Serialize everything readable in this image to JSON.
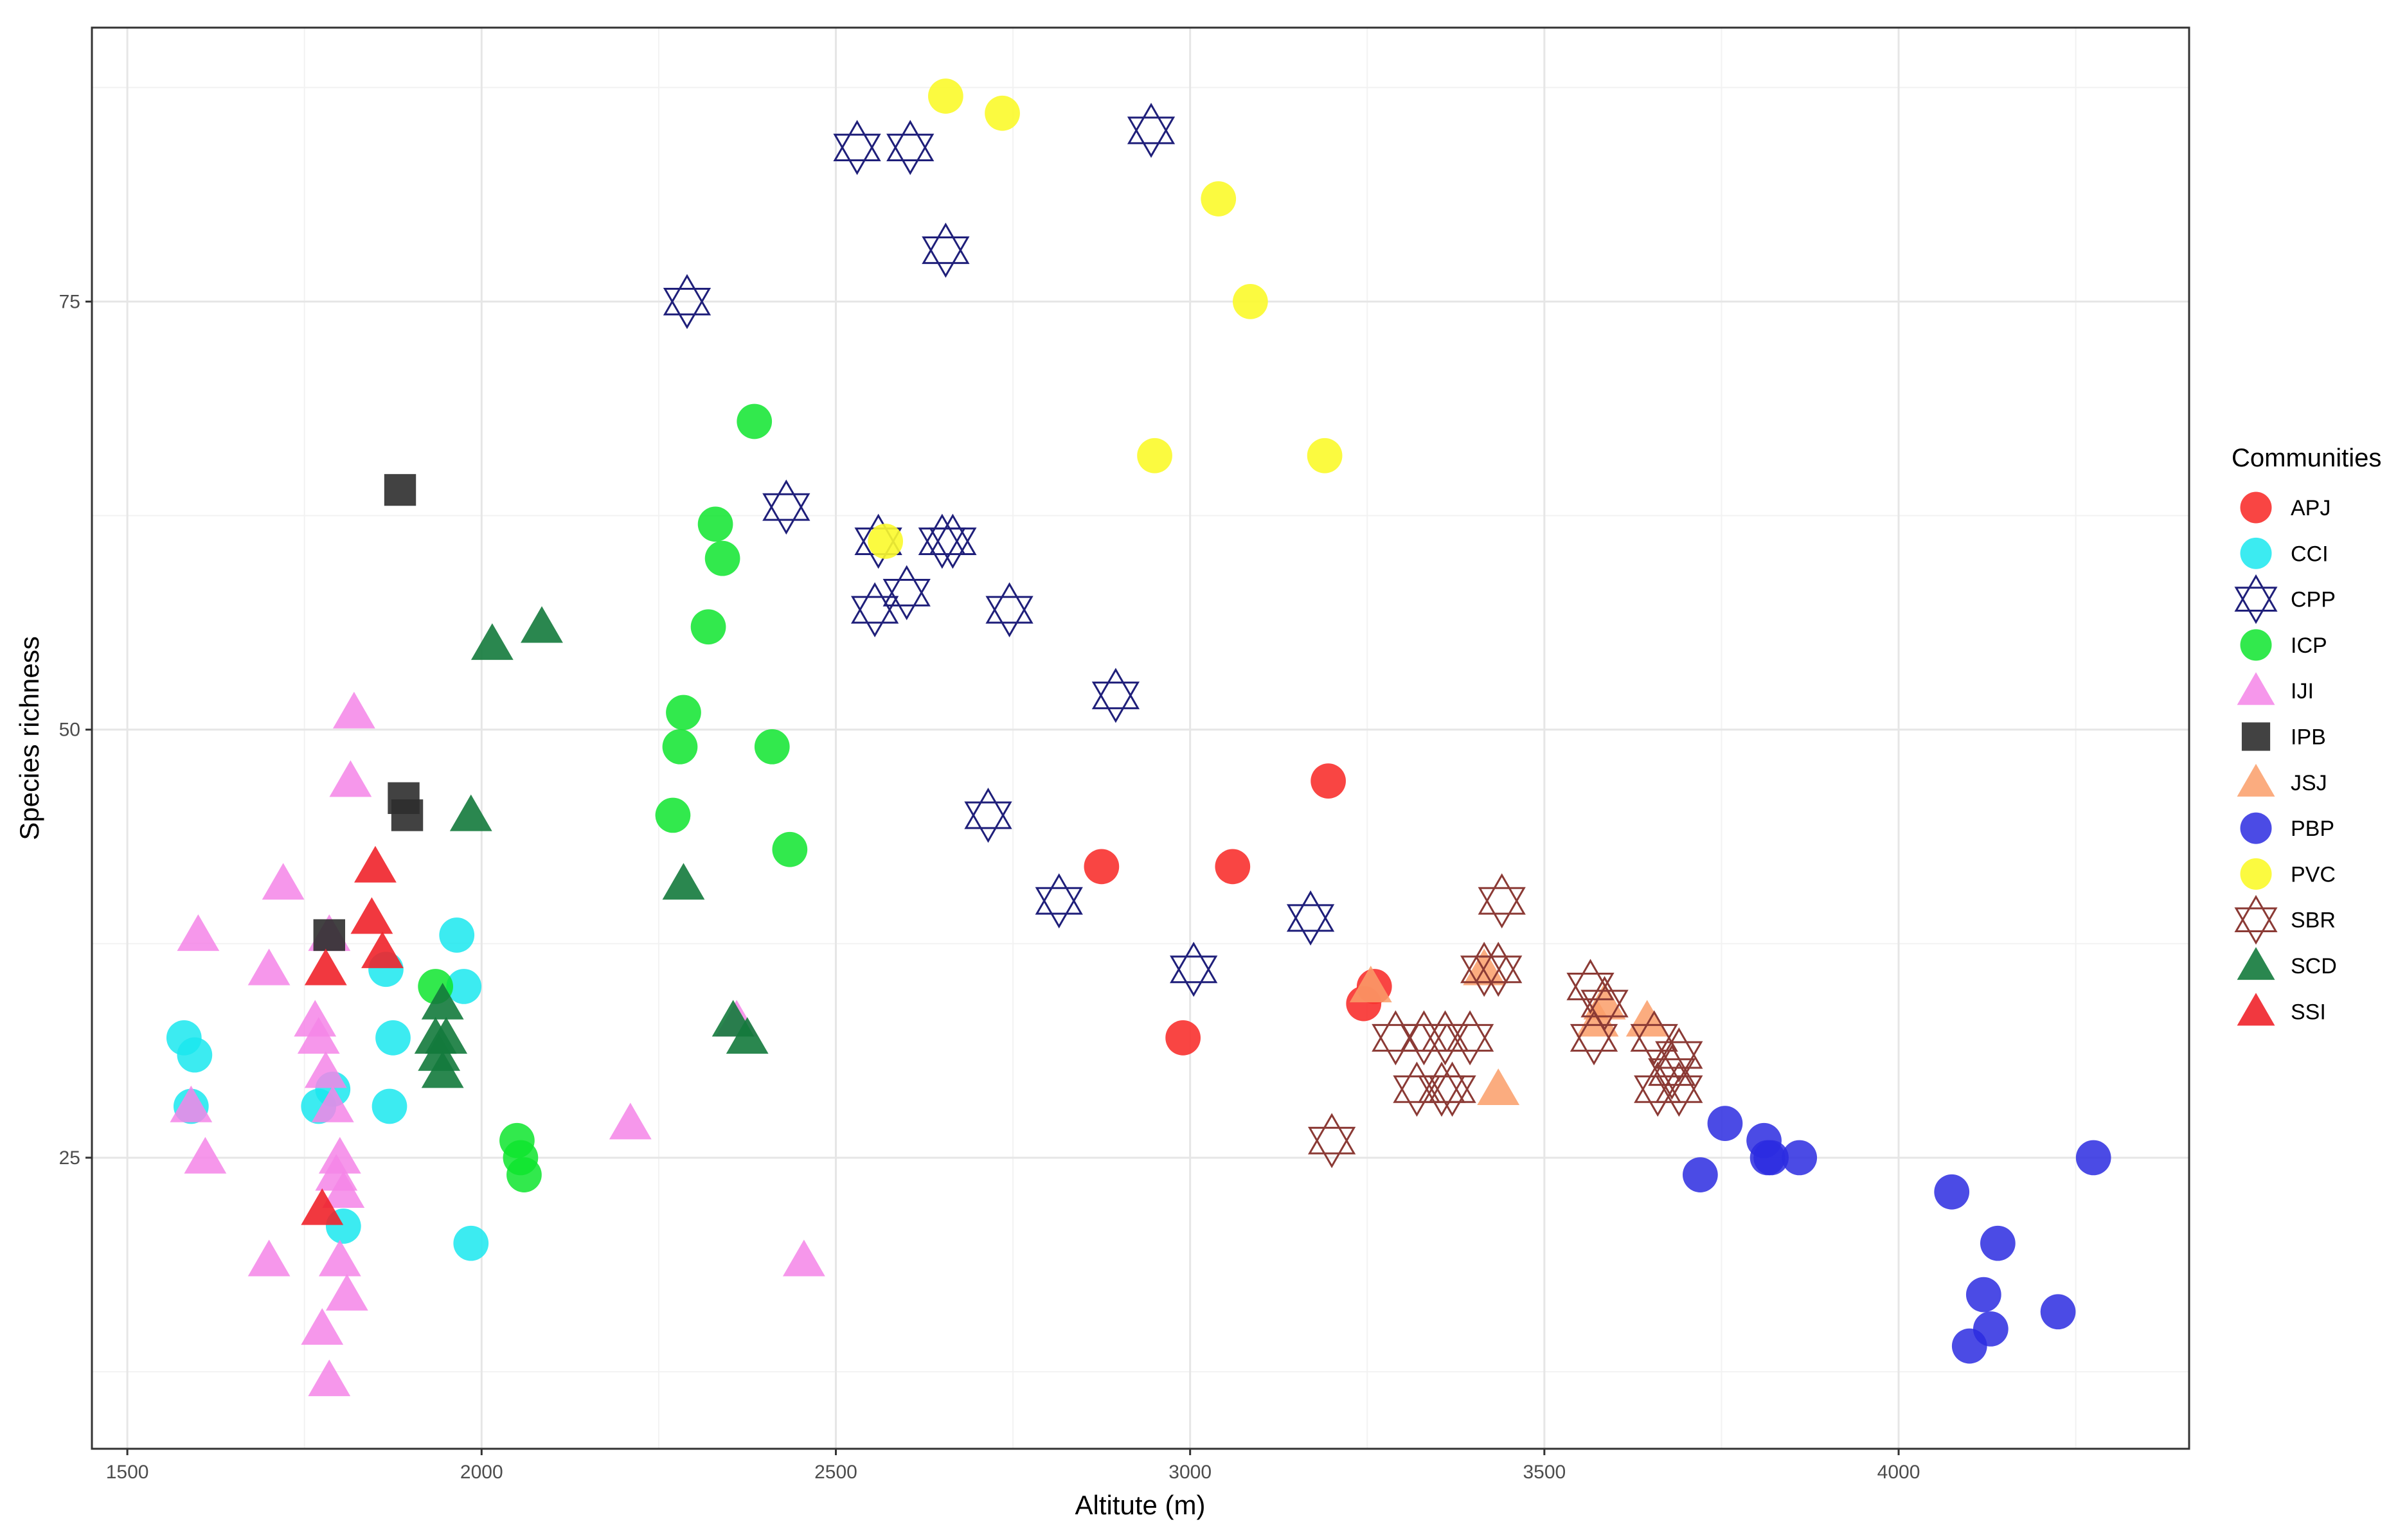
{
  "chart_data": {
    "type": "scatter",
    "title": "",
    "xlabel": "Altitute (m)",
    "ylabel": "Species richness",
    "xlim": [
      1450,
      4410
    ],
    "ylim": [
      8,
      91
    ],
    "x_ticks": [
      1500,
      2000,
      2500,
      3000,
      3500,
      4000
    ],
    "y_ticks": [
      25,
      50,
      75
    ],
    "grid": true,
    "legend_position": "right",
    "legend_title": "Communities",
    "series": [
      {
        "name": "APJ",
        "shape": "circle",
        "color": "#f8312f",
        "alpha": 0.9,
        "points": [
          [
            2875,
            42
          ],
          [
            3060,
            42
          ],
          [
            3195,
            47
          ],
          [
            2990,
            32
          ],
          [
            3245,
            34
          ],
          [
            3260,
            35
          ]
        ]
      },
      {
        "name": "CCI",
        "shape": "circle",
        "color": "#1ae8ee",
        "alpha": 0.85,
        "points": [
          [
            1580,
            32
          ],
          [
            1595,
            31
          ],
          [
            1590,
            28
          ],
          [
            1770,
            28
          ],
          [
            1790,
            29
          ],
          [
            1805,
            21
          ],
          [
            1865,
            36
          ],
          [
            1875,
            32
          ],
          [
            1870,
            28
          ],
          [
            1965,
            38
          ],
          [
            1975,
            35
          ],
          [
            1985,
            20
          ]
        ]
      },
      {
        "name": "CPP",
        "shape": "hexagram",
        "color": "#1f1f7a",
        "alpha": 1,
        "points": [
          [
            2290,
            75
          ],
          [
            2430,
            63
          ],
          [
            2530,
            84
          ],
          [
            2605,
            84
          ],
          [
            2655,
            78
          ],
          [
            2945,
            85
          ],
          [
            2560,
            61
          ],
          [
            2650,
            61
          ],
          [
            2665,
            61
          ],
          [
            2555,
            57
          ],
          [
            2600,
            58
          ],
          [
            2745,
            57
          ],
          [
            2895,
            52
          ],
          [
            2715,
            45
          ],
          [
            2815,
            40
          ],
          [
            3005,
            36
          ],
          [
            3170,
            39
          ]
        ]
      },
      {
        "name": "ICP",
        "shape": "circle",
        "color": "#0ee52e",
        "alpha": 0.85,
        "points": [
          [
            2385,
            68
          ],
          [
            2330,
            62
          ],
          [
            2340,
            60
          ],
          [
            2320,
            56
          ],
          [
            2285,
            51
          ],
          [
            2280,
            49
          ],
          [
            2410,
            49
          ],
          [
            2270,
            45
          ],
          [
            2435,
            43
          ],
          [
            1935,
            35
          ],
          [
            2050,
            26
          ],
          [
            2055,
            25
          ],
          [
            2060,
            24
          ]
        ]
      },
      {
        "name": "IJI",
        "shape": "triangle",
        "color": "#f585e8",
        "alpha": 0.85,
        "points": [
          [
            1600,
            38
          ],
          [
            1590,
            28
          ],
          [
            1610,
            25
          ],
          [
            1700,
            36
          ],
          [
            1720,
            41
          ],
          [
            1700,
            19
          ],
          [
            1765,
            33
          ],
          [
            1770,
            32
          ],
          [
            1780,
            30
          ],
          [
            1785,
            38
          ],
          [
            1790,
            28
          ],
          [
            1795,
            24
          ],
          [
            1800,
            25
          ],
          [
            1805,
            23
          ],
          [
            1800,
            19
          ],
          [
            1810,
            17
          ],
          [
            1775,
            15
          ],
          [
            1785,
            12
          ],
          [
            1815,
            47
          ],
          [
            1820,
            51
          ],
          [
            2210,
            27
          ],
          [
            2455,
            19
          ],
          [
            2360,
            33
          ]
        ]
      },
      {
        "name": "IPB",
        "shape": "square",
        "color": "#2e2e2e",
        "alpha": 0.9,
        "points": [
          [
            1885,
            64
          ],
          [
            1890,
            46
          ],
          [
            1895,
            45
          ],
          [
            1785,
            38
          ]
        ]
      },
      {
        "name": "JSJ",
        "shape": "triangle",
        "color": "#fa9d68",
        "alpha": 0.85,
        "points": [
          [
            3255,
            35
          ],
          [
            3415,
            36
          ],
          [
            3435,
            29
          ],
          [
            3575,
            33
          ],
          [
            3585,
            34
          ],
          [
            3645,
            33
          ]
        ]
      },
      {
        "name": "PBP",
        "shape": "circle",
        "color": "#2b2be0",
        "alpha": 0.85,
        "points": [
          [
            3755,
            27
          ],
          [
            3810,
            26
          ],
          [
            3815,
            25
          ],
          [
            3820,
            25
          ],
          [
            3860,
            25
          ],
          [
            3720,
            24
          ],
          [
            4075,
            23
          ],
          [
            4140,
            20
          ],
          [
            4120,
            17
          ],
          [
            4130,
            15
          ],
          [
            4100,
            14
          ],
          [
            4225,
            16
          ],
          [
            4275,
            25
          ]
        ]
      },
      {
        "name": "PVC",
        "shape": "circle",
        "color": "#fbfa2b",
        "alpha": 0.9,
        "points": [
          [
            2655,
            87
          ],
          [
            2735,
            86
          ],
          [
            3040,
            81
          ],
          [
            3085,
            75
          ],
          [
            2950,
            66
          ],
          [
            3190,
            66
          ],
          [
            2570,
            61
          ]
        ]
      },
      {
        "name": "SBR",
        "shape": "hexagram",
        "color": "#8b3a35",
        "alpha": 1,
        "points": [
          [
            3440,
            40
          ],
          [
            3435,
            36
          ],
          [
            3415,
            36
          ],
          [
            3565,
            35
          ],
          [
            3570,
            32
          ],
          [
            3585,
            34
          ],
          [
            3290,
            32
          ],
          [
            3330,
            32
          ],
          [
            3360,
            32
          ],
          [
            3395,
            32
          ],
          [
            3320,
            29
          ],
          [
            3355,
            29
          ],
          [
            3370,
            29
          ],
          [
            3655,
            32
          ],
          [
            3690,
            31
          ],
          [
            3680,
            30
          ],
          [
            3660,
            29
          ],
          [
            3690,
            29
          ],
          [
            3200,
            26
          ]
        ]
      },
      {
        "name": "SCD",
        "shape": "triangle",
        "color": "#137a3c",
        "alpha": 0.9,
        "points": [
          [
            2015,
            55
          ],
          [
            2085,
            56
          ],
          [
            1985,
            45
          ],
          [
            2285,
            41
          ],
          [
            2355,
            33
          ],
          [
            2375,
            32
          ],
          [
            1945,
            34
          ],
          [
            1935,
            32
          ],
          [
            1950,
            32
          ],
          [
            1940,
            31
          ],
          [
            1945,
            30
          ]
        ]
      },
      {
        "name": "SSI",
        "shape": "triangle",
        "color": "#f0222a",
        "alpha": 0.9,
        "points": [
          [
            1850,
            42
          ],
          [
            1845,
            39
          ],
          [
            1860,
            37
          ],
          [
            1780,
            36
          ],
          [
            1775,
            22
          ]
        ]
      }
    ]
  }
}
